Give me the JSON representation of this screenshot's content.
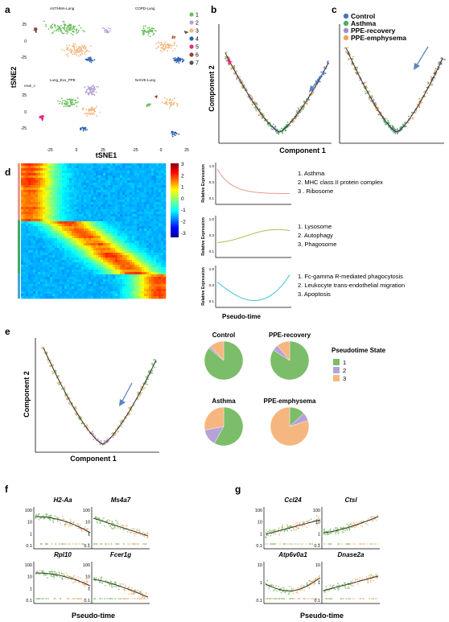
{
  "panel_labels": {
    "a": "a",
    "b": "b",
    "c": "c",
    "d": "d",
    "e": "e",
    "f": "f",
    "g": "g"
  },
  "panel_a": {
    "subtitles": [
      "ASTHMA-Lung",
      "COPD-Lung",
      "Lung_Exo_PPE",
      "NAIVE-Lung"
    ],
    "xlabel": "tSNE1",
    "ylabel": "tSNE2",
    "inner_ylabel": "tSNE_2",
    "x_ticks": [
      "-25",
      "0",
      "25",
      "-25",
      "0",
      "25"
    ],
    "y_ticks_top": [
      "25",
      "0",
      "-25"
    ],
    "y_ticks_bottom": [
      "25",
      "0",
      "-25"
    ],
    "clusters": [
      {
        "label": "1",
        "color": "#6cbf5e"
      },
      {
        "label": "2",
        "color": "#b7a2d6"
      },
      {
        "label": "3",
        "color": "#f3b880"
      },
      {
        "label": "4",
        "color": "#2e62b0"
      },
      {
        "label": "5",
        "color": "#e0288a"
      },
      {
        "label": "6",
        "color": "#a33b27"
      },
      {
        "label": "7",
        "color": "#555555"
      }
    ]
  },
  "panel_bc": {
    "ylabel": "Component 2",
    "xlabel": "Component 1",
    "legend": [
      {
        "label": "Control",
        "color": "#4779b8"
      },
      {
        "label": "Asthma",
        "color": "#4fae5a"
      },
      {
        "label": "PPE-recovery",
        "color": "#9b8fc7"
      },
      {
        "label": "PPE-emphysema",
        "color": "#f2a35a"
      }
    ]
  },
  "panel_d": {
    "colorbar_ticks": [
      "3",
      "2",
      "1",
      "0",
      "-1",
      "-2",
      "-3"
    ],
    "ylabel": "Relative Expression",
    "xlabel": "Pseudo-time",
    "y_ticks": [
      "1.0",
      "0.3",
      "0.1"
    ],
    "modules": [
      {
        "color": "#e89a8c",
        "items": [
          "1.  Asthma",
          "2.  MHC class II protein complex",
          "3 . Ribosome"
        ]
      },
      {
        "color": "#a6c34a",
        "items": [
          "1.  Lysosome",
          "2.  Autophagy",
          "3.  Phagosome"
        ]
      },
      {
        "color": "#3fc4d6",
        "items": [
          "1.  Fc-gamma R-mediated phagocytosis",
          "2.  Leukocyte trans-endothelial migration",
          "3.  Apoptosis"
        ]
      }
    ]
  },
  "panel_e": {
    "ylabel": "Component 2",
    "xlabel": "Component 1",
    "legend_title": "Pseudotime State",
    "states": [
      {
        "label": "1",
        "color": "#7cbd6a"
      },
      {
        "label": "2",
        "color": "#b7a2d6"
      },
      {
        "label": "3",
        "color": "#f6b680"
      }
    ],
    "pies": [
      {
        "title": "Control",
        "values": [
          0.86,
          0.02,
          0.12
        ]
      },
      {
        "title": "PPE-recovery",
        "values": [
          0.84,
          0.05,
          0.11
        ]
      },
      {
        "title": "Asthma",
        "values": [
          0.58,
          0.14,
          0.28
        ]
      },
      {
        "title": "PPE-emphysema",
        "values": [
          0.13,
          0.07,
          0.8
        ]
      }
    ]
  },
  "panel_f": {
    "genes": [
      "H2-Aa",
      "Ms4a7",
      "Rpl10",
      "Fcer1g"
    ],
    "xlabel": "Pseudo-time",
    "y_ticks": [
      "100",
      "10",
      "1",
      "0.1"
    ]
  },
  "panel_g": {
    "genes": [
      "Ccl24",
      "Ctsl",
      "Atp6v0a1",
      "Dnase2a"
    ],
    "xlabel": "Pseudo-time",
    "y_ticks_top_left": [
      "100",
      "10",
      "1",
      "0.1"
    ],
    "y_ticks_top_right": [
      "100",
      "10",
      "1",
      "0.1"
    ],
    "y_ticks_bottom": [
      "10",
      "1",
      "0.1"
    ]
  },
  "colors": {
    "trajectory": "#333333",
    "arrow": "#5b86c0"
  }
}
